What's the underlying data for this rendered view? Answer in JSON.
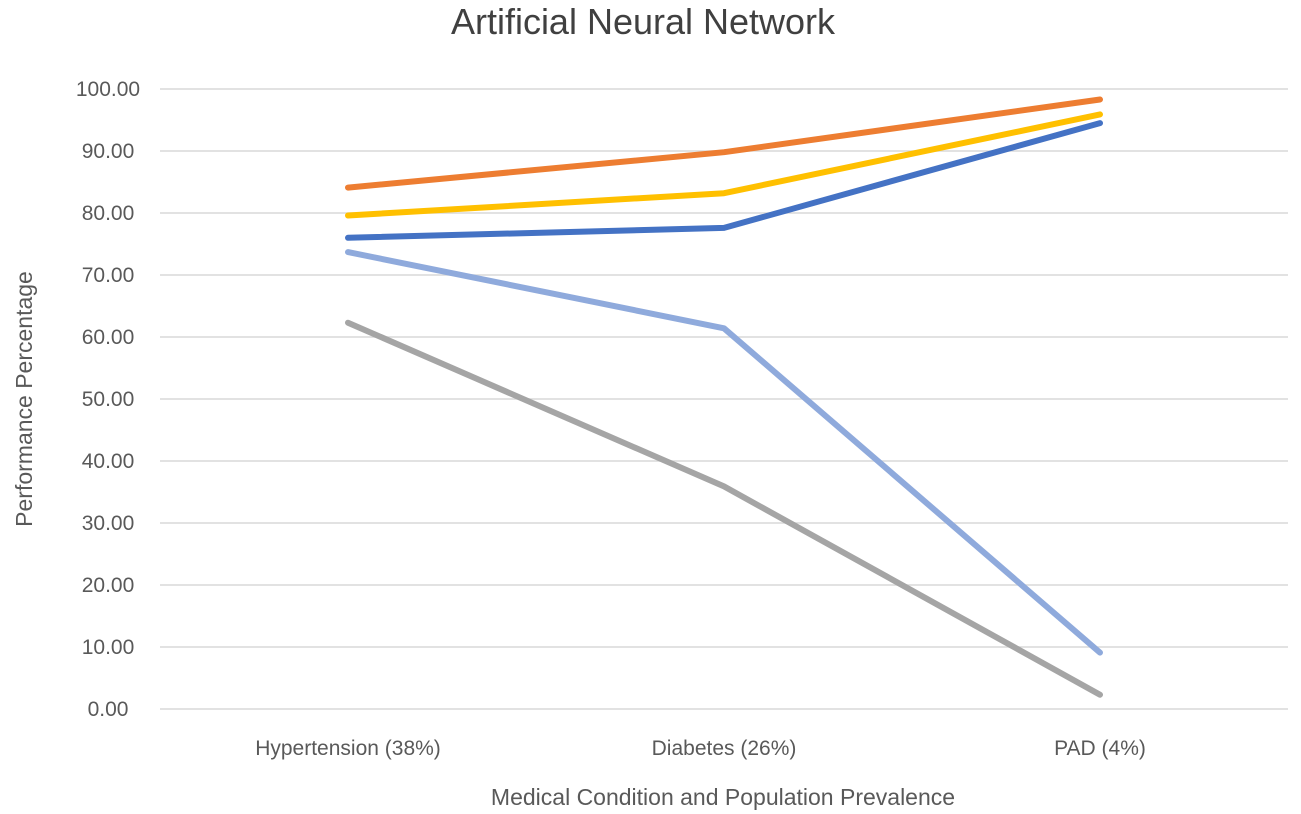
{
  "chart_data": {
    "type": "line",
    "title": "Artificial Neural Network",
    "xlabel": "Medical Condition and Population Prevalence",
    "ylabel": "Performance Percentage",
    "categories": [
      "Hypertension (38%)",
      "Diabetes (26%)",
      "PAD (4%)"
    ],
    "ylim": [
      0,
      100
    ],
    "yticks": [
      "0.00",
      "10.00",
      "20.00",
      "30.00",
      "40.00",
      "50.00",
      "60.00",
      "70.00",
      "80.00",
      "90.00",
      "100.00"
    ],
    "grid": true,
    "series": [
      {
        "color": "#ED7D31",
        "values": [
          84.1,
          89.8,
          98.3
        ]
      },
      {
        "color": "#FFC000",
        "values": [
          79.6,
          83.2,
          95.9
        ]
      },
      {
        "color": "#4472C4",
        "values": [
          76.0,
          77.6,
          94.5
        ]
      },
      {
        "color": "#8FAADC",
        "values": [
          73.7,
          61.4,
          9.1
        ]
      },
      {
        "color": "#A5A5A5",
        "values": [
          62.3,
          35.9,
          2.3
        ]
      }
    ]
  }
}
